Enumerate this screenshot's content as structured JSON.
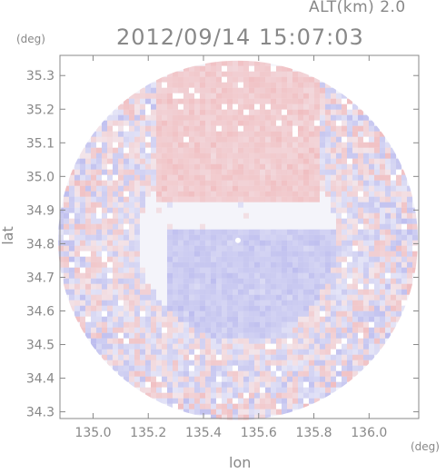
{
  "header": {
    "altitude_label": "ALT(km) 2.0",
    "timestamp": "2012/09/14 15:07:03"
  },
  "chart_data": {
    "type": "heatmap",
    "title": "2012/09/14 15:07:03",
    "xlabel": "lon",
    "ylabel": "lat",
    "x_unit": "(deg)",
    "y_unit": "(deg)",
    "xlim": [
      134.88,
      136.18
    ],
    "ylim": [
      34.28,
      35.36
    ],
    "x_ticks": [
      "135.0",
      "135.2",
      "135.4",
      "135.6",
      "135.8",
      "136.0"
    ],
    "y_ticks": [
      "34.3",
      "34.4",
      "34.5",
      "34.6",
      "34.7",
      "34.8",
      "34.9",
      "35.0",
      "35.1",
      "35.2",
      "35.3"
    ],
    "radar_center": [
      135.525,
      34.81
    ],
    "grid": false,
    "colors": {
      "positive": "#f6c8c8",
      "negative": "#c8c8f0",
      "neutral": "#f4f4fa",
      "axis": "#888888"
    }
  }
}
